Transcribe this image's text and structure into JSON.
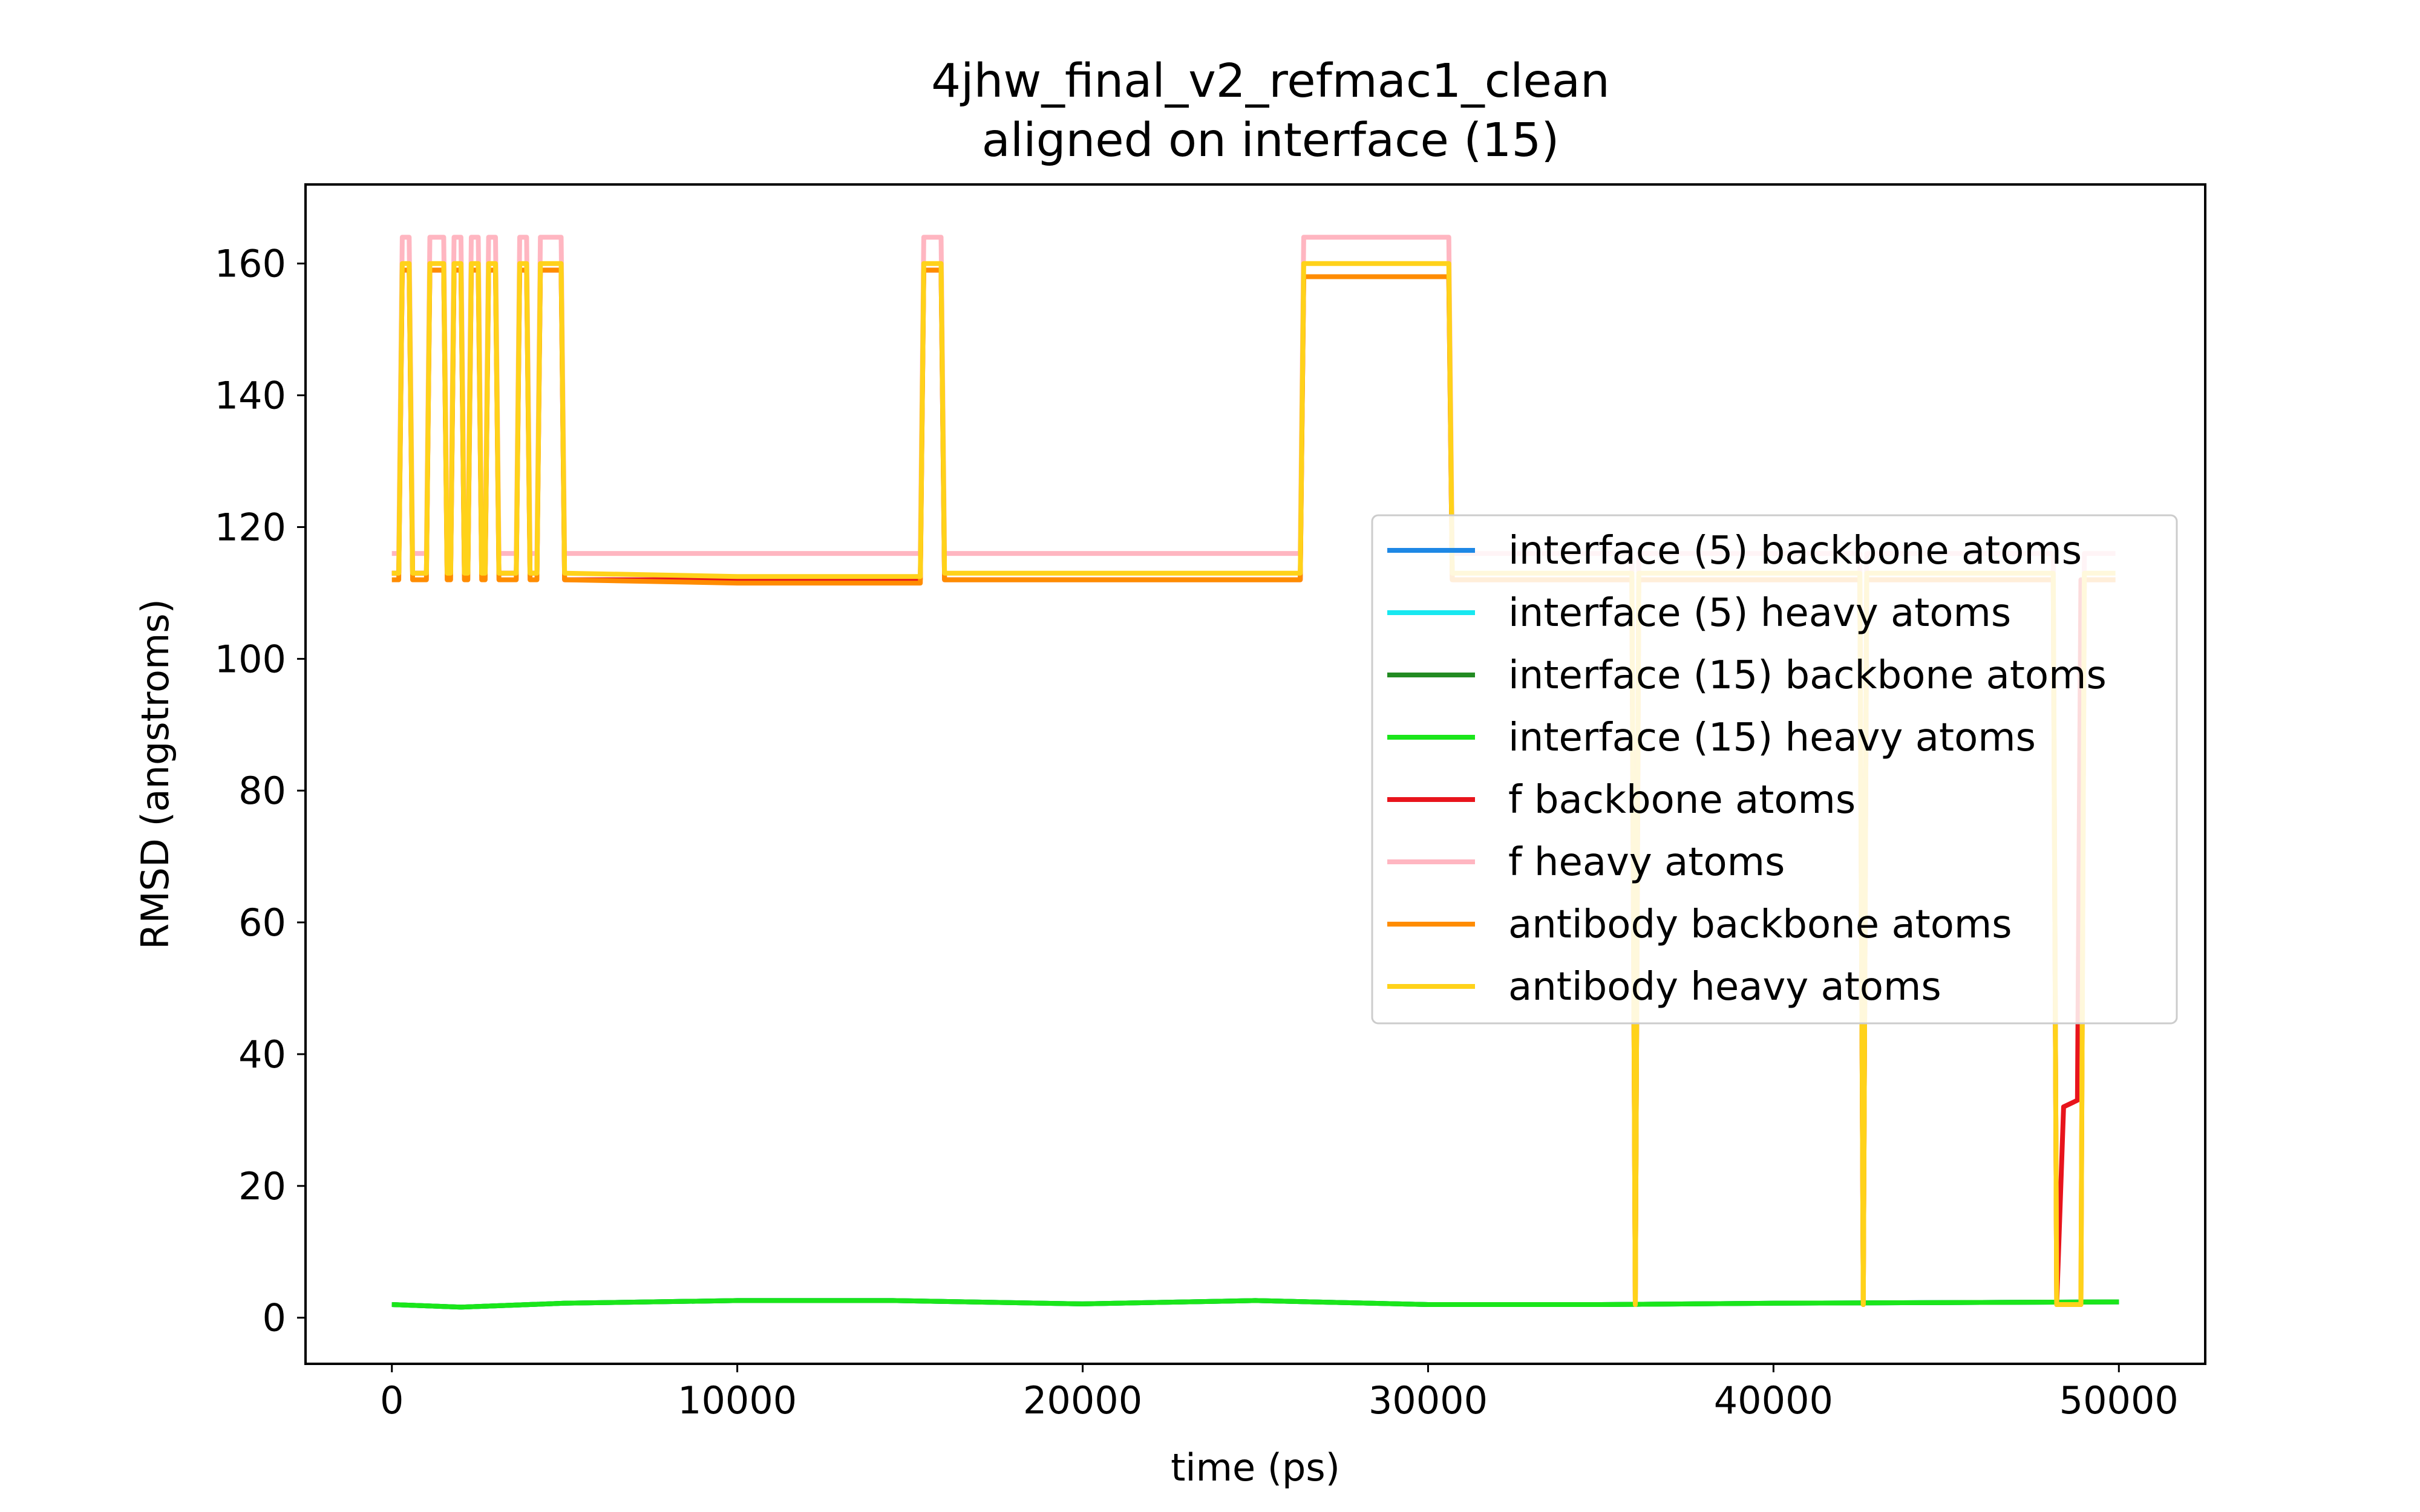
{
  "chart_data": {
    "type": "line",
    "title": "4jhw_final_v2_refmac1_clean",
    "subtitle": "aligned on interface (15)",
    "xlabel": "time (ps)",
    "ylabel": "RMSD (angstroms)",
    "xlim": [
      -2500,
      52500
    ],
    "ylim": [
      -7,
      172
    ],
    "xticks": [
      0,
      10000,
      20000,
      30000,
      40000,
      50000
    ],
    "yticks": [
      0,
      20,
      40,
      60,
      80,
      100,
      120,
      140,
      160
    ],
    "grid": false,
    "legend_position": "center-right",
    "series": [
      {
        "name": "interface (5) backbone atoms",
        "color": "#1e88e5",
        "points": [
          [
            0,
            2.0
          ],
          [
            2000,
            1.6
          ],
          [
            5000,
            2.2
          ],
          [
            10000,
            2.6
          ],
          [
            14500,
            2.6
          ],
          [
            20000,
            2.1
          ],
          [
            25000,
            2.6
          ],
          [
            30000,
            2.0
          ],
          [
            35000,
            2.0
          ],
          [
            40000,
            2.2
          ],
          [
            45000,
            2.3
          ],
          [
            50000,
            2.4
          ]
        ]
      },
      {
        "name": "interface (5) heavy atoms",
        "color": "#18e8f0",
        "points": [
          [
            0,
            2.0
          ],
          [
            2000,
            1.6
          ],
          [
            5000,
            2.2
          ],
          [
            10000,
            2.6
          ],
          [
            14500,
            2.6
          ],
          [
            20000,
            2.1
          ],
          [
            25000,
            2.6
          ],
          [
            30000,
            2.0
          ],
          [
            35000,
            2.0
          ],
          [
            40000,
            2.2
          ],
          [
            45000,
            2.3
          ],
          [
            50000,
            2.4
          ]
        ]
      },
      {
        "name": "interface (15) backbone atoms",
        "color": "#228b22",
        "points": [
          [
            0,
            2.0
          ],
          [
            2000,
            1.6
          ],
          [
            5000,
            2.2
          ],
          [
            10000,
            2.6
          ],
          [
            14500,
            2.6
          ],
          [
            20000,
            2.1
          ],
          [
            25000,
            2.6
          ],
          [
            30000,
            2.0
          ],
          [
            35000,
            2.0
          ],
          [
            40000,
            2.2
          ],
          [
            45000,
            2.3
          ],
          [
            50000,
            2.4
          ]
        ]
      },
      {
        "name": "interface (15) heavy atoms",
        "color": "#1ae61a",
        "points": [
          [
            0,
            2.0
          ],
          [
            2000,
            1.6
          ],
          [
            5000,
            2.2
          ],
          [
            10000,
            2.6
          ],
          [
            14500,
            2.6
          ],
          [
            20000,
            2.1
          ],
          [
            25000,
            2.6
          ],
          [
            30000,
            2.0
          ],
          [
            35000,
            2.0
          ],
          [
            40000,
            2.2
          ],
          [
            45000,
            2.3
          ],
          [
            50000,
            2.4
          ]
        ]
      },
      {
        "name": "f backbone atoms",
        "color": "#e8141c",
        "points": [
          [
            0,
            113
          ],
          [
            200,
            113
          ],
          [
            300,
            159
          ],
          [
            500,
            159
          ],
          [
            600,
            113
          ],
          [
            1000,
            113
          ],
          [
            1100,
            159
          ],
          [
            1500,
            159
          ],
          [
            1600,
            113
          ],
          [
            1700,
            113
          ],
          [
            1800,
            159
          ],
          [
            2000,
            159
          ],
          [
            2100,
            113
          ],
          [
            2200,
            113
          ],
          [
            2300,
            159
          ],
          [
            2500,
            159
          ],
          [
            2600,
            113
          ],
          [
            2700,
            113
          ],
          [
            2800,
            159
          ],
          [
            3000,
            159
          ],
          [
            3100,
            113
          ],
          [
            3600,
            113
          ],
          [
            3700,
            159
          ],
          [
            3900,
            159
          ],
          [
            4000,
            113
          ],
          [
            4200,
            113
          ],
          [
            4300,
            159
          ],
          [
            4900,
            159
          ],
          [
            5000,
            112
          ],
          [
            10000,
            112
          ],
          [
            15300,
            112
          ],
          [
            15400,
            159
          ],
          [
            15900,
            159
          ],
          [
            16000,
            112
          ],
          [
            26300,
            112
          ],
          [
            26400,
            158
          ],
          [
            30600,
            158
          ],
          [
            30700,
            112
          ],
          [
            35900,
            112
          ],
          [
            36000,
            2
          ],
          [
            36100,
            112
          ],
          [
            42500,
            112
          ],
          [
            42600,
            2
          ],
          [
            42700,
            112
          ],
          [
            48100,
            112
          ],
          [
            48200,
            2
          ],
          [
            48400,
            32
          ],
          [
            48800,
            33
          ],
          [
            48900,
            112
          ],
          [
            49900,
            112
          ]
        ]
      },
      {
        "name": "f heavy atoms",
        "color": "#ffb6c1",
        "points": [
          [
            0,
            116
          ],
          [
            200,
            116
          ],
          [
            300,
            164
          ],
          [
            500,
            164
          ],
          [
            600,
            116
          ],
          [
            1000,
            116
          ],
          [
            1100,
            164
          ],
          [
            1500,
            164
          ],
          [
            1600,
            116
          ],
          [
            1700,
            116
          ],
          [
            1800,
            164
          ],
          [
            2000,
            164
          ],
          [
            2100,
            116
          ],
          [
            2200,
            116
          ],
          [
            2300,
            164
          ],
          [
            2500,
            164
          ],
          [
            2600,
            116
          ],
          [
            2700,
            116
          ],
          [
            2800,
            164
          ],
          [
            3000,
            164
          ],
          [
            3100,
            116
          ],
          [
            3600,
            116
          ],
          [
            3700,
            164
          ],
          [
            3900,
            164
          ],
          [
            4000,
            116
          ],
          [
            4200,
            116
          ],
          [
            4300,
            164
          ],
          [
            4900,
            164
          ],
          [
            5000,
            116
          ],
          [
            10000,
            116
          ],
          [
            15300,
            116
          ],
          [
            15400,
            164
          ],
          [
            15900,
            164
          ],
          [
            16000,
            116
          ],
          [
            26300,
            116
          ],
          [
            26400,
            164
          ],
          [
            30600,
            164
          ],
          [
            30700,
            116
          ],
          [
            35900,
            116
          ],
          [
            36000,
            2
          ],
          [
            36100,
            116
          ],
          [
            42500,
            116
          ],
          [
            42600,
            2
          ],
          [
            42700,
            116
          ],
          [
            48100,
            116
          ],
          [
            48200,
            2
          ],
          [
            48900,
            2
          ],
          [
            49000,
            116
          ],
          [
            49900,
            116
          ]
        ]
      },
      {
        "name": "antibody backbone atoms",
        "color": "#ff8c00",
        "points": [
          [
            0,
            112
          ],
          [
            200,
            112
          ],
          [
            300,
            159
          ],
          [
            500,
            159
          ],
          [
            600,
            112
          ],
          [
            1000,
            112
          ],
          [
            1100,
            159
          ],
          [
            1500,
            159
          ],
          [
            1600,
            112
          ],
          [
            1700,
            112
          ],
          [
            1800,
            159
          ],
          [
            2000,
            159
          ],
          [
            2100,
            112
          ],
          [
            2200,
            112
          ],
          [
            2300,
            159
          ],
          [
            2500,
            159
          ],
          [
            2600,
            112
          ],
          [
            2700,
            112
          ],
          [
            2800,
            159
          ],
          [
            3000,
            159
          ],
          [
            3100,
            112
          ],
          [
            3600,
            112
          ],
          [
            3700,
            159
          ],
          [
            3900,
            159
          ],
          [
            4000,
            112
          ],
          [
            4200,
            112
          ],
          [
            4300,
            159
          ],
          [
            4900,
            159
          ],
          [
            5000,
            112
          ],
          [
            10000,
            111.5
          ],
          [
            15300,
            111.5
          ],
          [
            15400,
            159
          ],
          [
            15900,
            159
          ],
          [
            16000,
            112
          ],
          [
            26300,
            112
          ],
          [
            26400,
            158
          ],
          [
            30600,
            158
          ],
          [
            30700,
            112
          ],
          [
            35900,
            112
          ],
          [
            36000,
            2
          ],
          [
            36100,
            112
          ],
          [
            42500,
            112
          ],
          [
            42600,
            2
          ],
          [
            42700,
            112
          ],
          [
            48100,
            112
          ],
          [
            48200,
            2
          ],
          [
            48900,
            2
          ],
          [
            49000,
            112
          ],
          [
            49900,
            112
          ]
        ]
      },
      {
        "name": "antibody heavy atoms",
        "color": "#ffd21a",
        "points": [
          [
            0,
            113
          ],
          [
            200,
            113
          ],
          [
            300,
            160
          ],
          [
            500,
            160
          ],
          [
            600,
            113
          ],
          [
            1000,
            113
          ],
          [
            1100,
            160
          ],
          [
            1500,
            160
          ],
          [
            1600,
            113
          ],
          [
            1700,
            113
          ],
          [
            1800,
            160
          ],
          [
            2000,
            160
          ],
          [
            2100,
            113
          ],
          [
            2200,
            113
          ],
          [
            2300,
            160
          ],
          [
            2500,
            160
          ],
          [
            2600,
            113
          ],
          [
            2700,
            113
          ],
          [
            2800,
            160
          ],
          [
            3000,
            160
          ],
          [
            3100,
            113
          ],
          [
            3600,
            113
          ],
          [
            3700,
            160
          ],
          [
            3900,
            160
          ],
          [
            4000,
            113
          ],
          [
            4200,
            113
          ],
          [
            4300,
            160
          ],
          [
            4900,
            160
          ],
          [
            5000,
            113
          ],
          [
            10000,
            112.5
          ],
          [
            15300,
            112.5
          ],
          [
            15400,
            160
          ],
          [
            15900,
            160
          ],
          [
            16000,
            113
          ],
          [
            26300,
            113
          ],
          [
            26400,
            160
          ],
          [
            30600,
            160
          ],
          [
            30700,
            113
          ],
          [
            35900,
            113
          ],
          [
            36000,
            2
          ],
          [
            36100,
            113
          ],
          [
            42500,
            113
          ],
          [
            42600,
            2
          ],
          [
            42700,
            113
          ],
          [
            48100,
            113
          ],
          [
            48200,
            2
          ],
          [
            48900,
            2
          ],
          [
            49000,
            113
          ],
          [
            49900,
            113
          ]
        ]
      }
    ]
  }
}
